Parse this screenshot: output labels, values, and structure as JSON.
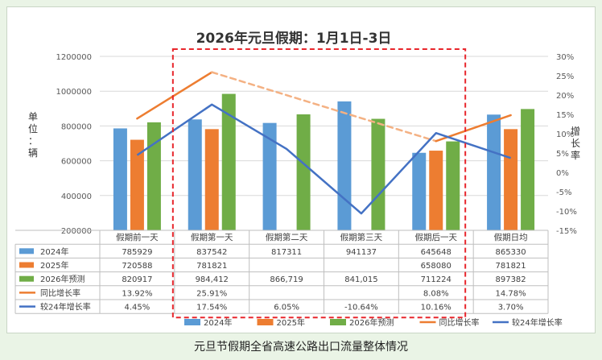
{
  "caption": "元旦节假期全省高速公路出口流量整体情况",
  "colors": {
    "s2024": "#5b9bd5",
    "s2025": "#ed7d31",
    "s2026": "#70ad47",
    "yoy": "#ed7d31",
    "yoy_dash": "#f4b183",
    "vs24": "#4472c4",
    "highlight": "#e8262c"
  },
  "chart_data": {
    "type": "bar",
    "title": "2026年元旦假期：1月1日-3日",
    "ylabel_left": "单位：辆",
    "ylabel_right": "增长率",
    "ylim": [
      200000,
      1200000
    ],
    "yticks": [
      "1200000",
      "1000000",
      "800000",
      "600000",
      "400000",
      "200000"
    ],
    "y2lim": [
      -15,
      30
    ],
    "y2ticks": [
      "30%",
      "25%",
      "20%",
      "15%",
      "10%",
      "5%",
      "0%",
      "-5%",
      "-10%",
      "-15%"
    ],
    "categories": [
      "假期前一天",
      "假期第一天",
      "假期第二天",
      "假期第三天",
      "假期后一天",
      "假期日均"
    ],
    "series": [
      {
        "name": "2024年",
        "type": "bar",
        "values": [
          785929,
          837542,
          817311,
          941137,
          645648,
          865330
        ],
        "labels": [
          "785929",
          "837542",
          "817311",
          "941137",
          "645648",
          "865330"
        ]
      },
      {
        "name": "2025年",
        "type": "bar",
        "values": [
          720588,
          781821,
          null,
          null,
          658080,
          781821
        ],
        "labels": [
          "720588",
          "781821",
          "",
          "",
          "658080",
          "781821"
        ]
      },
      {
        "name": "2026年预测",
        "type": "bar",
        "values": [
          820917,
          984412,
          866719,
          841015,
          711224,
          897382
        ],
        "labels": [
          "820917",
          "984,412",
          "866,719",
          "841,015",
          "711224",
          "897382"
        ]
      },
      {
        "name": "同比增长率",
        "type": "line",
        "values": [
          13.92,
          25.91,
          null,
          null,
          8.08,
          14.78
        ],
        "labels": [
          "13.92%",
          "25.91%",
          "",
          "",
          "8.08%",
          "14.78%"
        ]
      },
      {
        "name": "较24年增长率",
        "type": "line",
        "values": [
          4.45,
          17.54,
          6.05,
          -10.64,
          10.16,
          3.7
        ],
        "labels": [
          "4.45%",
          "17.54%",
          "6.05%",
          "-10.64%",
          "10.16%",
          "3.70%"
        ]
      }
    ]
  }
}
